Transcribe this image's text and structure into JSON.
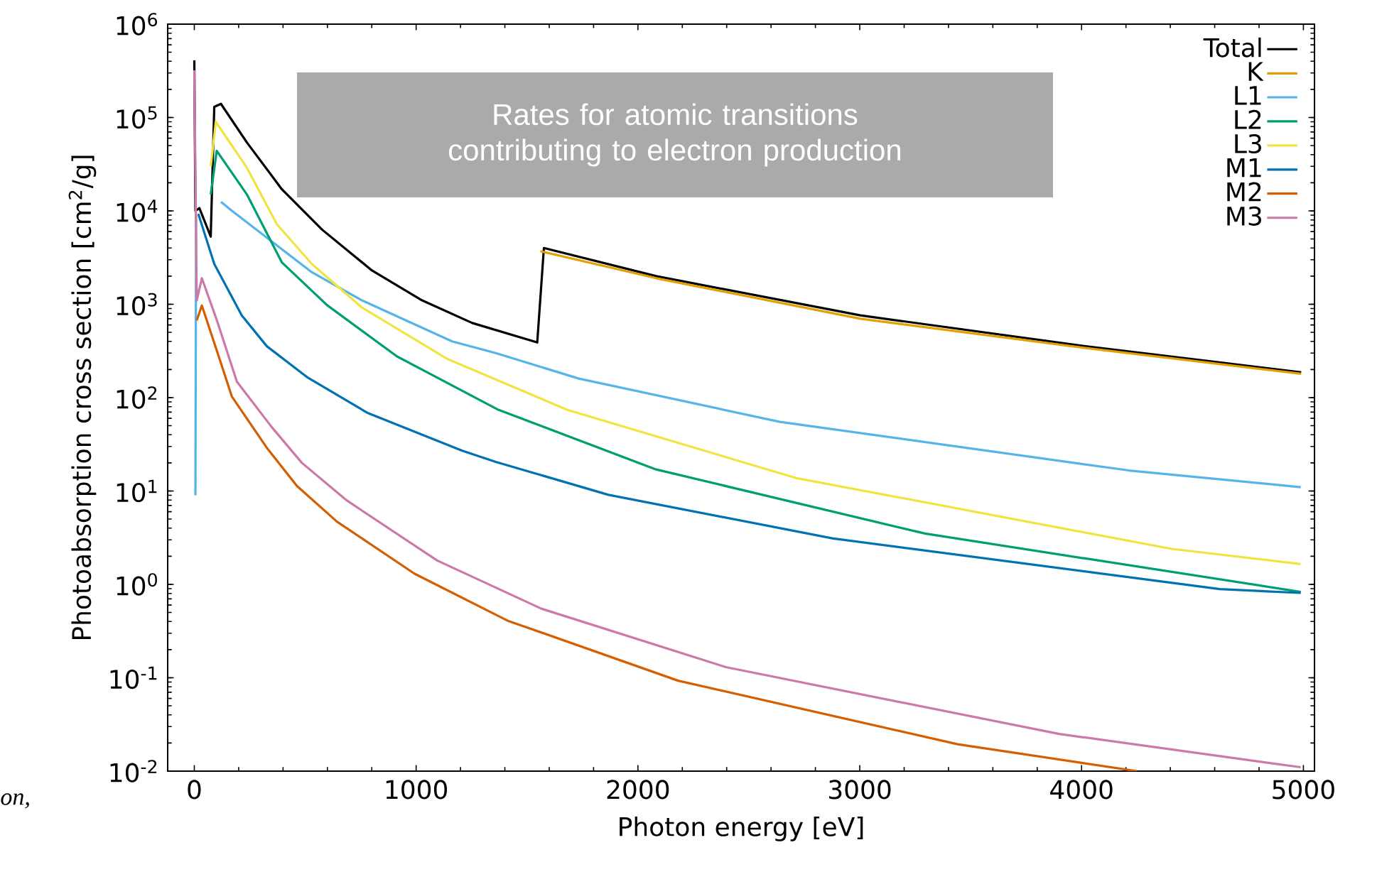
{
  "chart_data": {
    "type": "line",
    "log": "y",
    "legend": "top right",
    "xlabel": "Photon energy [eV]",
    "ylabel": "Photoabsorption cross section [cm$^{2}$/g]",
    "xlim": [
      -120,
      5050
    ],
    "ylim": [
      0.01,
      1000000
    ],
    "xticks": [
      0,
      1000,
      2000,
      3000,
      4000,
      5000
    ],
    "yticks": [
      {
        "value": 0.01,
        "label": "10$^{-2}$"
      },
      {
        "value": 0.1,
        "label": "10$^{-1}$"
      },
      {
        "value": 1,
        "label": "10$^{0}$"
      },
      {
        "value": 10,
        "label": "10$^{1}$"
      },
      {
        "value": 100,
        "label": "10$^{2}$"
      },
      {
        "value": 1000,
        "label": "10$^{3}$"
      },
      {
        "value": 10000,
        "label": "10$^{4}$"
      },
      {
        "value": 100000,
        "label": "10$^{5}$"
      },
      {
        "value": 1000000,
        "label": "10$^{6}$"
      }
    ],
    "annotations": [
      "Rates for atomic transitions contributing to electron production",
      "on,"
    ],
    "series": [
      {
        "name": "Total",
        "color": "#000000",
        "x": [
          0,
          5,
          23,
          74,
          90,
          120,
          237,
          395,
          576,
          801,
          1027,
          1253,
          1546,
          1576,
          2082,
          3003,
          4018,
          4990
        ],
        "values": [
          410000,
          10000,
          10700,
          5300,
          130000,
          140000,
          54000,
          17000,
          6300,
          2300,
          1100,
          630,
          390,
          4000,
          2000,
          760,
          355,
          187
        ]
      },
      {
        "name": "K",
        "color": "#e69f00",
        "x": [
          1560,
          2082,
          3003,
          4018,
          4990
        ],
        "values": [
          3700,
          1900,
          700,
          340,
          180
        ]
      },
      {
        "name": "L1",
        "color": "#56b4e9",
        "x": [
          5,
          8,
          60,
          120,
          170,
          530,
          756,
          1162,
          1359,
          1733,
          2640,
          4213,
          4988
        ],
        "values": [
          9,
          9000,
          null,
          12500,
          10000,
          2200,
          1100,
          400,
          300,
          160,
          55,
          16.6,
          11
        ]
      },
      {
        "name": "L2",
        "color": "#009e73",
        "x": [
          74,
          101,
          237,
          395,
          598,
          914,
          1366,
          2082,
          3294,
          4988
        ],
        "values": [
          15000,
          44000,
          15000,
          2800,
          980,
          276,
          75,
          17,
          3.5,
          0.83
        ]
      },
      {
        "name": "L3",
        "color": "#f0e442",
        "x": [
          74,
          97,
          237,
          372,
          530,
          756,
          1140,
          1682,
          2711,
          4406,
          4988
        ],
        "values": [
          30000,
          90000,
          29000,
          7200,
          2700,
          920,
          260,
          74,
          13.8,
          2.4,
          1.65
        ]
      },
      {
        "name": "M1",
        "color": "#0072b2",
        "x": [
          18,
          90,
          214,
          327,
          508,
          779,
          1208,
          1359,
          1867,
          2880,
          4623,
          4988
        ],
        "values": [
          9300,
          2700,
          760,
          355,
          166,
          69,
          27,
          20.5,
          9.1,
          3.1,
          0.89,
          0.81
        ]
      },
      {
        "name": "M2",
        "color": "#d55e00",
        "x": [
          11,
          34,
          102,
          169,
          327,
          463,
          643,
          993,
          1411,
          2181,
          3441,
          4250
        ],
        "values": [
          670,
          970,
          316,
          103,
          29,
          11.3,
          4.7,
          1.3,
          0.41,
          0.093,
          0.0194,
          0.01
        ]
      },
      {
        "name": "M3",
        "color": "#cc79a7",
        "x": [
          0,
          11,
          34,
          102,
          192,
          350,
          485,
          688,
          1095,
          1564,
          2396,
          3899,
          4988
        ],
        "values": [
          320000,
          1100,
          1900,
          670,
          148,
          48,
          20,
          7.9,
          1.8,
          0.55,
          0.13,
          0.025,
          0.011
        ]
      }
    ]
  }
}
